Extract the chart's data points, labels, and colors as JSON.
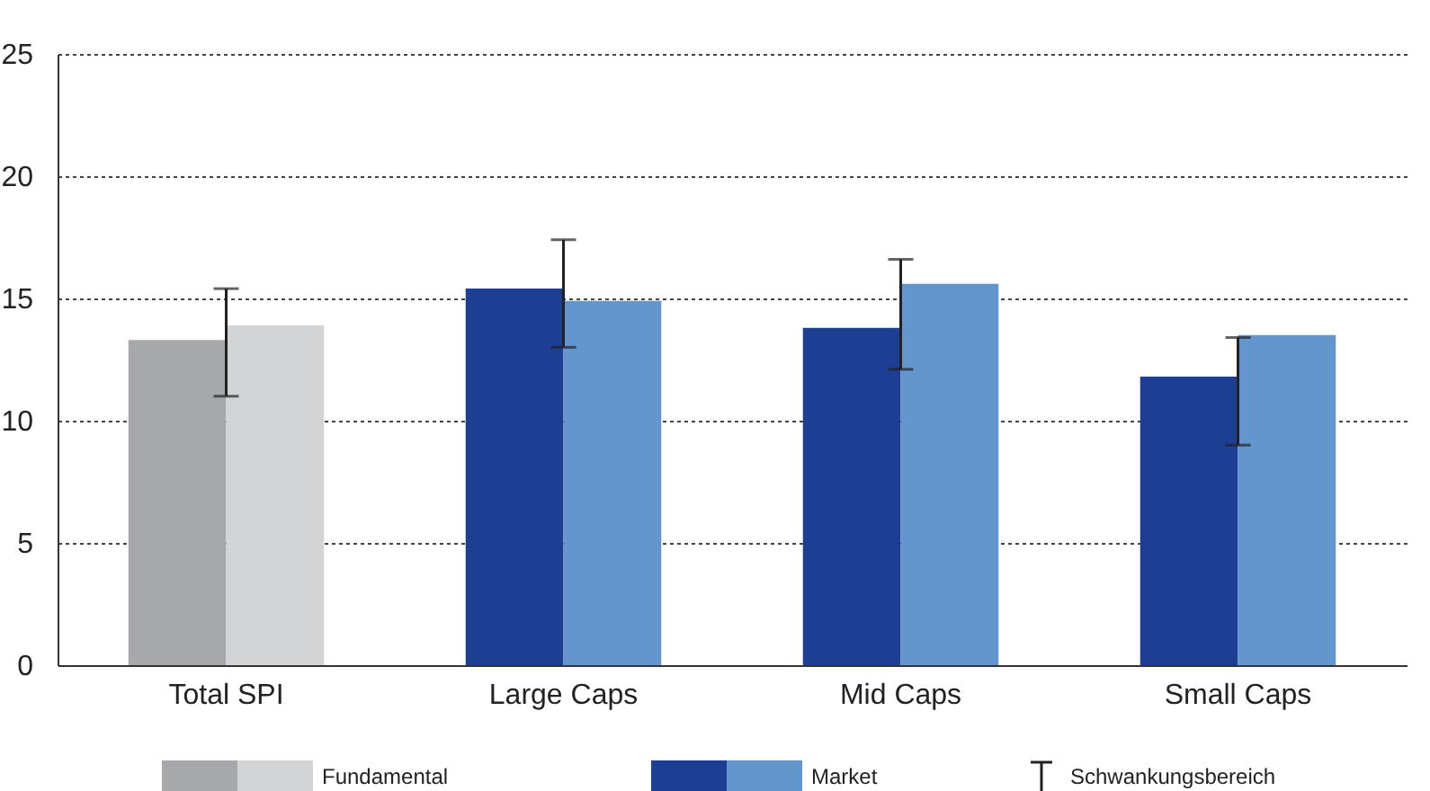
{
  "chart_data": {
    "type": "bar",
    "categories": [
      "Total SPI",
      "Large Caps",
      "Mid Caps",
      "Small Caps"
    ],
    "series": [
      {
        "colors": [
          "#a7a8ac",
          "#1c3f94",
          "#1c3f94",
          "#1c3f94"
        ],
        "values": [
          13.3,
          15.4,
          13.8,
          11.8
        ],
        "errors": [
          [
            11.0,
            15.4
          ],
          [
            13.0,
            17.4
          ],
          [
            12.1,
            16.6
          ],
          [
            9.0,
            13.4
          ]
        ]
      },
      {
        "colors": [
          "#d3d4d6",
          "#6296cc",
          "#6296cc",
          "#6296cc"
        ],
        "values": [
          13.9,
          14.9,
          15.6,
          13.5
        ]
      }
    ],
    "ylim": [
      0,
      25
    ],
    "yticks": [
      0,
      5,
      10,
      15,
      20,
      25
    ],
    "grid": "y",
    "annotations": [
      "Fundamental",
      "Market",
      "Schwankungsbereich"
    ]
  }
}
